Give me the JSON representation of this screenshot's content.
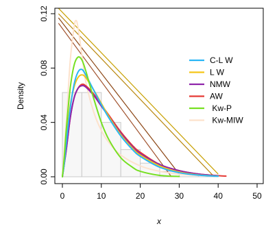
{
  "chart_data": {
    "type": "line",
    "xlabel": "x",
    "ylabel": "Density",
    "xlim": [
      0,
      50
    ],
    "ylim": [
      0,
      0.12
    ],
    "x_ticks": [
      "0",
      "10",
      "20",
      "30",
      "40",
      "50"
    ],
    "y_ticks": [
      "0.00",
      "0.04",
      "0.08",
      "0.12"
    ],
    "x_tick_values": [
      0,
      10,
      20,
      30,
      40,
      50
    ],
    "y_tick_values": [
      0,
      0.04,
      0.08,
      0.12
    ],
    "grid": false,
    "legend_position": "right",
    "histogram": {
      "bins": [
        0,
        5,
        10,
        15,
        20,
        25,
        30,
        35,
        40
      ],
      "densities": [
        0.062,
        0.062,
        0.04,
        0.02,
        0.01,
        0.004,
        0.002,
        0.001
      ]
    },
    "series": [
      {
        "name": "C-L W",
        "color": "#29b6f6",
        "x": [
          0,
          0.5,
          1,
          2,
          3,
          4,
          5,
          6,
          8,
          10,
          12,
          15,
          18,
          20,
          25,
          30,
          35,
          40
        ],
        "y": [
          0.0,
          0.01,
          0.025,
          0.05,
          0.068,
          0.077,
          0.079,
          0.075,
          0.064,
          0.053,
          0.043,
          0.03,
          0.02,
          0.015,
          0.007,
          0.003,
          0.0012,
          0.0004
        ]
      },
      {
        "name": "L W",
        "color": "#f5c518",
        "x": [
          0,
          0.5,
          1,
          2,
          3,
          4,
          5,
          6,
          8,
          10,
          12,
          15,
          18,
          20,
          25,
          30,
          35,
          40
        ],
        "y": [
          0.0,
          0.012,
          0.028,
          0.052,
          0.066,
          0.073,
          0.075,
          0.073,
          0.064,
          0.054,
          0.044,
          0.031,
          0.021,
          0.016,
          0.008,
          0.0035,
          0.0014,
          0.0005
        ]
      },
      {
        "name": "NMW",
        "color": "#8e24aa",
        "x": [
          0,
          1,
          2,
          3,
          4,
          5,
          6,
          8,
          10,
          12,
          15,
          18,
          20,
          25,
          30,
          35,
          40
        ],
        "y": [
          0.0,
          0.02,
          0.043,
          0.058,
          0.065,
          0.067,
          0.066,
          0.06,
          0.052,
          0.044,
          0.032,
          0.022,
          0.017,
          0.009,
          0.0045,
          0.002,
          0.0008
        ]
      },
      {
        "name": "AW",
        "color": "#e53935",
        "x": [
          0,
          1,
          2,
          3,
          4,
          5,
          6,
          8,
          10,
          12,
          15,
          18,
          20,
          25,
          30,
          35,
          40,
          42
        ],
        "y": [
          0.0,
          0.02,
          0.043,
          0.058,
          0.065,
          0.068,
          0.067,
          0.061,
          0.053,
          0.045,
          0.033,
          0.023,
          0.018,
          0.009,
          0.0045,
          0.002,
          0.0008,
          0.0005
        ]
      },
      {
        "name": "Kw-P",
        "color": "#76e021",
        "x": [
          0,
          0.5,
          1,
          2,
          3,
          4,
          5,
          6,
          7,
          8,
          10,
          12,
          15,
          18,
          20,
          25,
          30
        ],
        "y": [
          0.0,
          0.015,
          0.035,
          0.065,
          0.082,
          0.088,
          0.086,
          0.078,
          0.068,
          0.058,
          0.04,
          0.027,
          0.014,
          0.007,
          0.004,
          0.001,
          0.0002
        ]
      },
      {
        "name": "Kw-MIW",
        "color": "#fde2cc",
        "x": [
          0,
          1,
          2,
          3,
          3.5,
          4,
          5,
          6,
          8,
          10,
          12,
          15,
          20,
          25,
          30,
          35
        ],
        "y": [
          0.0,
          0.04,
          0.085,
          0.11,
          0.115,
          0.11,
          0.09,
          0.07,
          0.048,
          0.034,
          0.025,
          0.016,
          0.008,
          0.004,
          0.002,
          0.001
        ]
      }
    ],
    "overlay_lines": [
      {
        "color": "#c8a000",
        "x": [
          -1,
          40
        ],
        "y": [
          0.124,
          0.002
        ]
      },
      {
        "color": "#b8860b",
        "x": [
          -1,
          39
        ],
        "y": [
          0.12,
          0.0
        ]
      },
      {
        "color": "#8b4513",
        "x": [
          -1,
          30
        ],
        "y": [
          0.117,
          0.002
        ]
      },
      {
        "color": "#a0522d",
        "x": [
          -1,
          28
        ],
        "y": [
          0.113,
          0.0
        ]
      }
    ]
  },
  "legend": {
    "items": [
      {
        "label": "C-L W",
        "color": "#29b6f6"
      },
      {
        "label": "L W",
        "color": "#f5c518"
      },
      {
        "label": "NMW",
        "color": "#8e24aa"
      },
      {
        "label": "AW",
        "color": "#e53935"
      },
      {
        "label": " Kw-P",
        "color": "#76e021"
      },
      {
        "label": " Kw-MIW",
        "color": "#fde2cc"
      }
    ]
  }
}
